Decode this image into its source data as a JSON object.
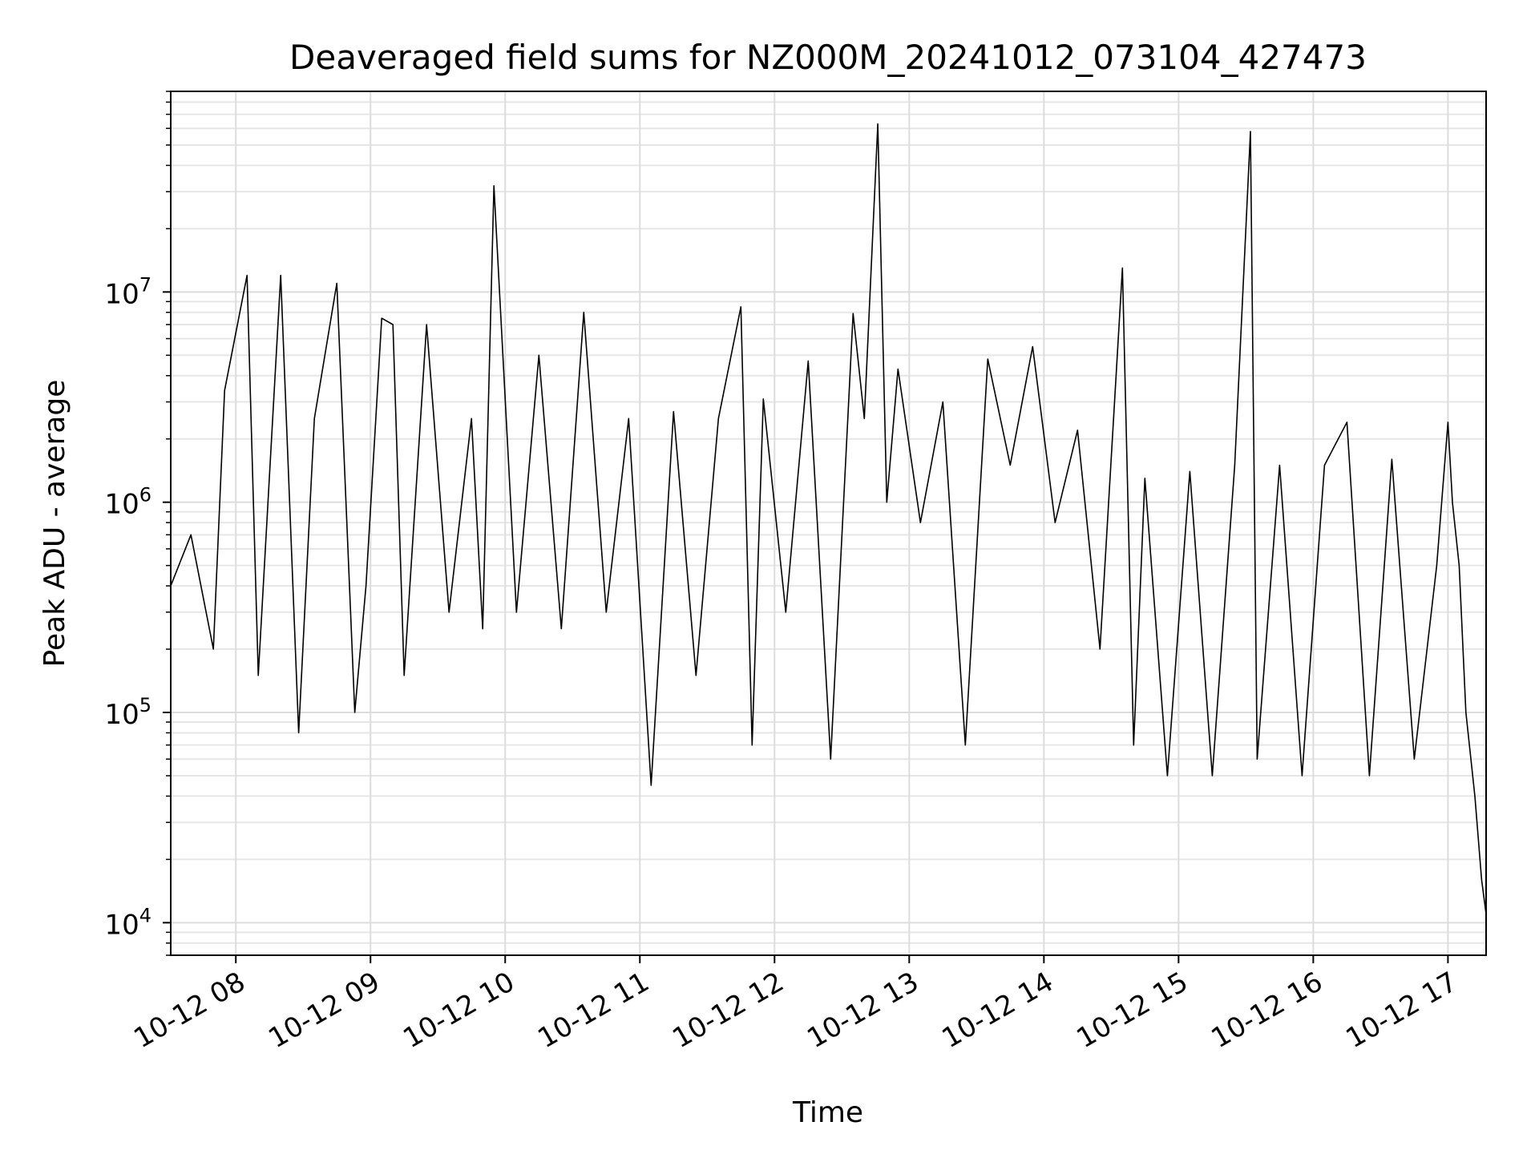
{
  "chart_data": {
    "type": "line",
    "title": "Deaveraged field sums for NZ000M_20241012_073104_427473",
    "xlabel": "Time",
    "ylabel": "Peak ADU - average",
    "xscale": "time",
    "yscale": "log",
    "xlim": [
      "2024-10-12 07:31",
      "2024-10-12 17:17"
    ],
    "ylim": [
      7000,
      90000000
    ],
    "grid": true,
    "x_ticks": [
      "10-12 08",
      "10-12 09",
      "10-12 10",
      "10-12 11",
      "10-12 12",
      "10-12 13",
      "10-12 14",
      "10-12 15",
      "10-12 16",
      "10-12 17"
    ],
    "y_ticks": [
      {
        "base": "10",
        "exp": "4"
      },
      {
        "base": "10",
        "exp": "5"
      },
      {
        "base": "10",
        "exp": "6"
      },
      {
        "base": "10",
        "exp": "7"
      }
    ],
    "line_color": "#000000",
    "series": [
      {
        "x": [
          "07:31",
          "07:40",
          "07:50",
          "07:55",
          "08:05",
          "08:10",
          "08:20",
          "08:28",
          "08:35",
          "08:45",
          "08:53",
          "08:58",
          "09:05",
          "09:10",
          "09:15",
          "09:25",
          "09:35",
          "09:45",
          "09:50",
          "09:55",
          "10:05",
          "10:15",
          "10:25",
          "10:35",
          "10:45",
          "10:55",
          "11:05",
          "11:15",
          "11:25",
          "11:35",
          "11:45",
          "11:50",
          "11:55",
          "12:05",
          "12:15",
          "12:25",
          "12:35",
          "12:40",
          "12:46",
          "12:50",
          "12:55",
          "13:05",
          "13:15",
          "13:25",
          "13:35",
          "13:45",
          "13:55",
          "14:05",
          "14:15",
          "14:25",
          "14:35",
          "14:40",
          "14:45",
          "14:55",
          "15:05",
          "15:15",
          "15:25",
          "15:32",
          "15:35",
          "15:45",
          "15:55",
          "16:05",
          "16:15",
          "16:25",
          "16:35",
          "16:45",
          "16:55",
          "17:00",
          "17:02",
          "17:05",
          "17:08",
          "17:12",
          "17:15",
          "17:17"
        ],
        "y": [
          400000,
          700000,
          200000,
          3400000,
          12000000,
          150000,
          12000000,
          80000,
          2500000,
          11000000,
          100000,
          400000,
          7500000,
          7000000,
          150000,
          7000000,
          300000,
          2500000,
          250000,
          32000000,
          300000,
          5000000,
          250000,
          8000000,
          300000,
          2500000,
          45000,
          2700000,
          150000,
          2500000,
          8500000,
          70000,
          3100000,
          300000,
          4700000,
          60000,
          7900000,
          2500000,
          63000000,
          1000000,
          4300000,
          800000,
          3000000,
          70000,
          4800000,
          1500000,
          5500000,
          800000,
          2200000,
          200000,
          13000000,
          70000,
          1300000,
          50000,
          1400000,
          50000,
          1500000,
          58000000,
          60000,
          1500000,
          50000,
          1500000,
          2400000,
          50000,
          1600000,
          60000,
          500000,
          2400000,
          1000000,
          500000,
          100000,
          40000,
          16000,
          11000
        ]
      }
    ]
  }
}
